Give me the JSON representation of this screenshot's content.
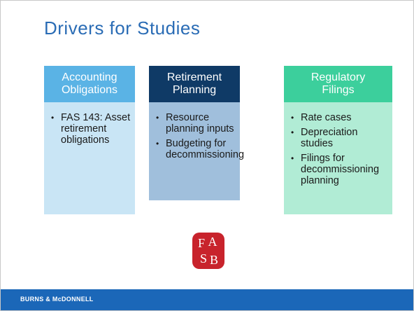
{
  "title": "Drivers for Studies",
  "columns": [
    {
      "header": "Accounting Obligations",
      "items": [
        "FAS 143: Asset retirement obligations"
      ]
    },
    {
      "header": "Retirement Planning",
      "items": [
        "Resource planning inputs",
        "Budgeting for decommissioning"
      ]
    },
    {
      "header": "Regulatory Filings",
      "items": [
        "Rate cases",
        "Depreciation studies",
        "Filings for decommissioning planning"
      ]
    }
  ],
  "logo_letters": [
    "F",
    "A",
    "S",
    "B"
  ],
  "footer": {
    "brand": "BURNS & McDONNELL"
  }
}
